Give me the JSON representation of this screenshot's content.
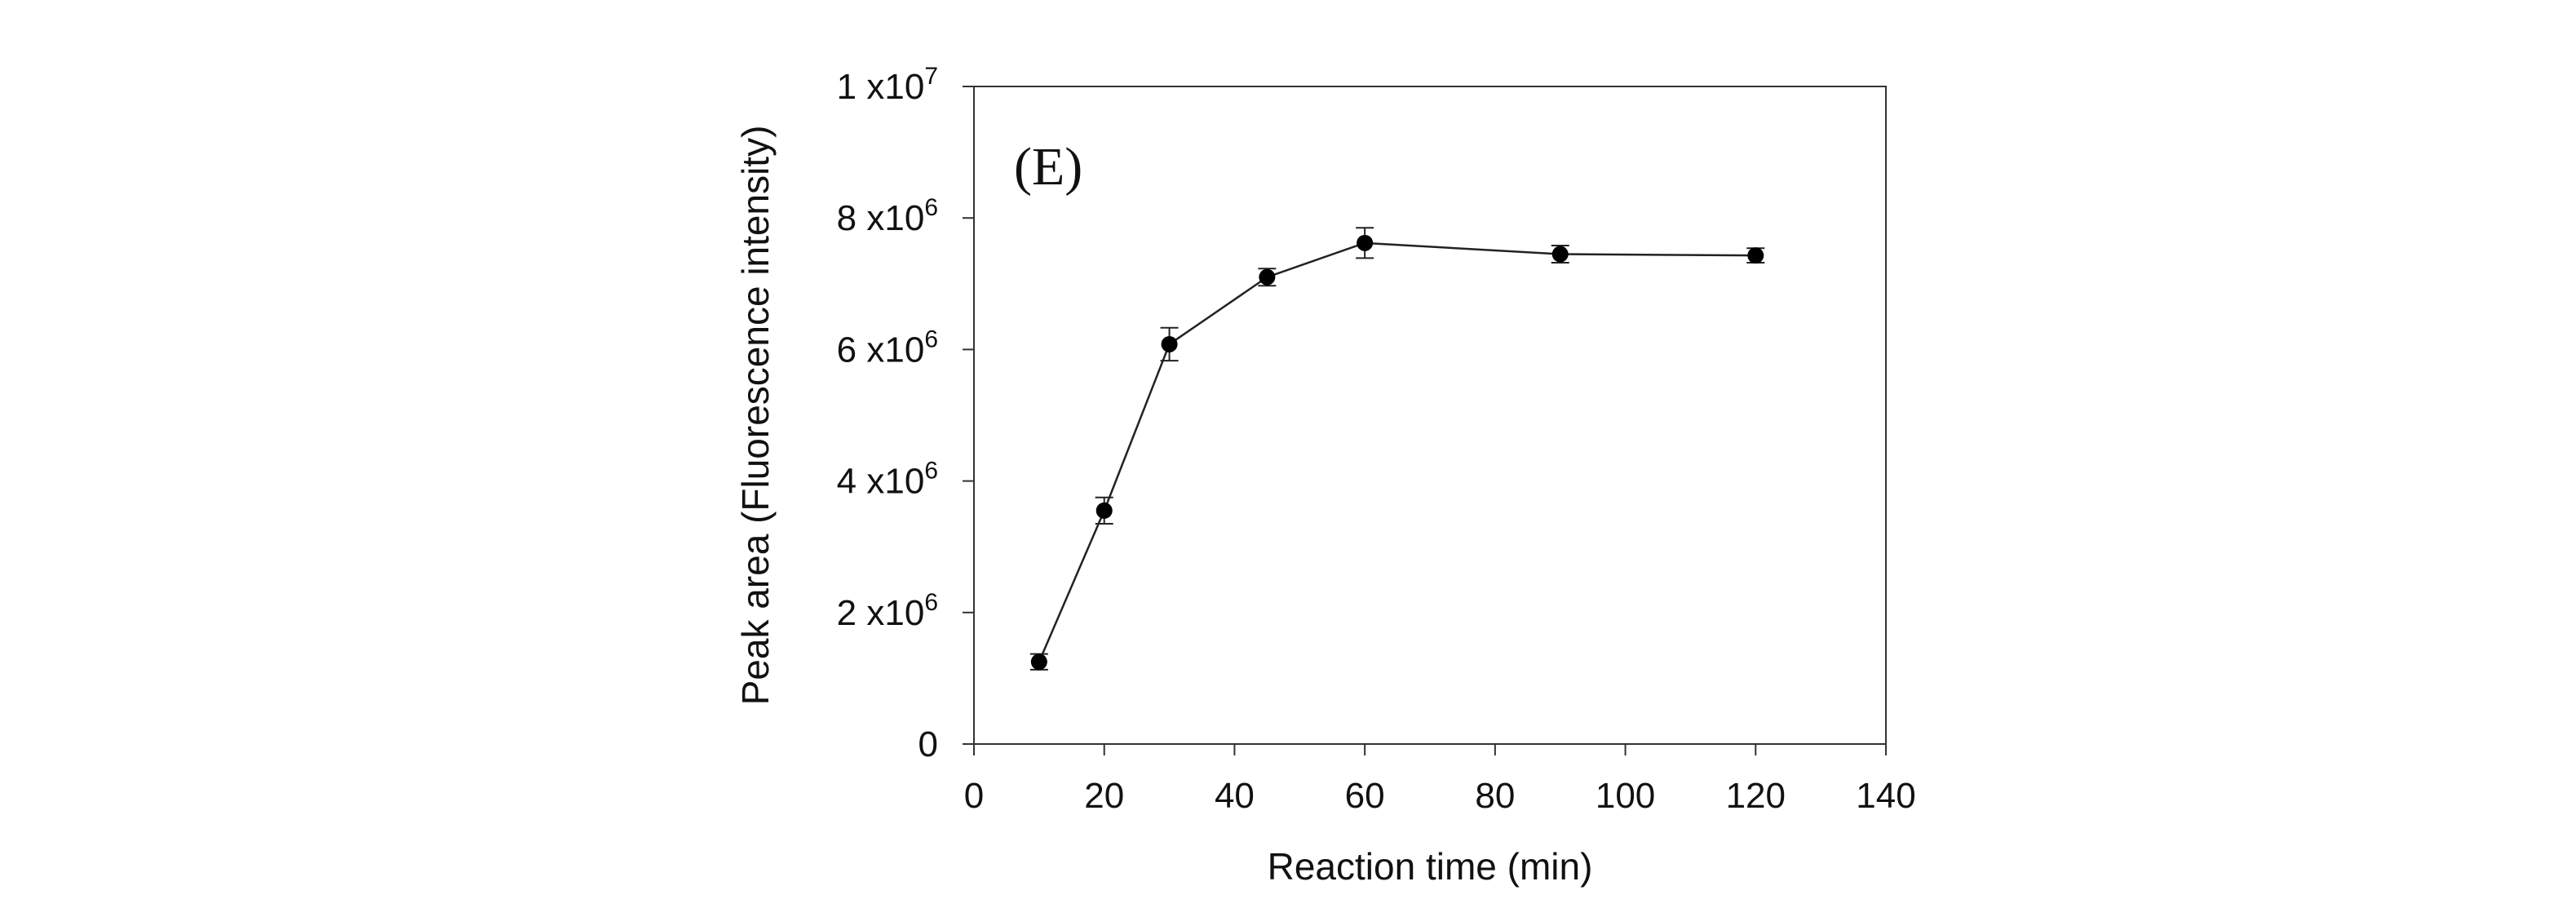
{
  "chart_data": {
    "type": "line",
    "panel_label": "(E)",
    "xlabel": "Reaction time (min)",
    "ylabel": "Peak area (Fluorescence intensity)",
    "xlim": [
      0,
      140
    ],
    "ylim": [
      0,
      10000000
    ],
    "x_ticks": [
      {
        "value": 0,
        "label": "0"
      },
      {
        "value": 20,
        "label": "20"
      },
      {
        "value": 40,
        "label": "40"
      },
      {
        "value": 60,
        "label": "60"
      },
      {
        "value": 80,
        "label": "80"
      },
      {
        "value": 100,
        "label": "100"
      },
      {
        "value": 120,
        "label": "120"
      },
      {
        "value": 140,
        "label": "140"
      }
    ],
    "y_ticks": [
      {
        "value": 0,
        "mantissa": "0",
        "exponent": ""
      },
      {
        "value": 2000000,
        "mantissa": "2 x10",
        "exponent": "6"
      },
      {
        "value": 4000000,
        "mantissa": "4 x10",
        "exponent": "6"
      },
      {
        "value": 6000000,
        "mantissa": "6 x10",
        "exponent": "6"
      },
      {
        "value": 8000000,
        "mantissa": "8 x10",
        "exponent": "6"
      },
      {
        "value": 10000000,
        "mantissa": "1 x10",
        "exponent": "7"
      }
    ],
    "grid": false,
    "series": [
      {
        "name": "Peak area",
        "x": [
          10,
          20,
          30,
          45,
          60,
          90,
          120
        ],
        "y": [
          1250000,
          3550000,
          6080000,
          7100000,
          7620000,
          7450000,
          7430000
        ],
        "error": [
          120000,
          200000,
          250000,
          130000,
          230000,
          130000,
          110000
        ]
      }
    ]
  }
}
